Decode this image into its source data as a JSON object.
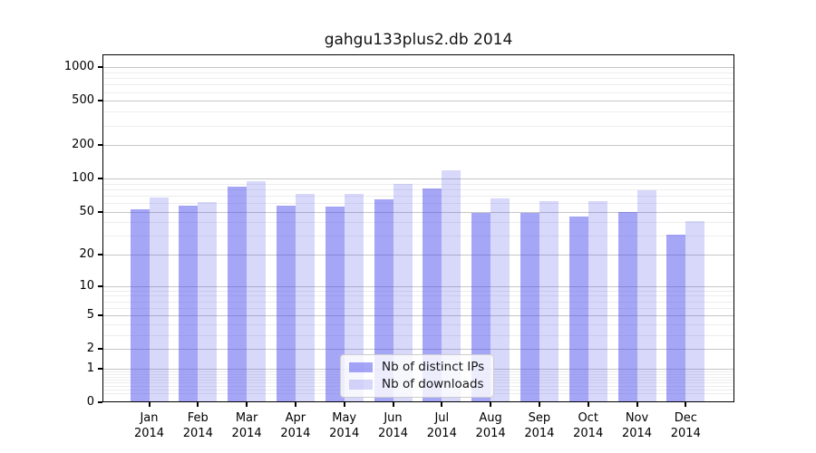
{
  "title": "gahgu133plus2.db 2014",
  "chart_data": {
    "type": "bar",
    "title": "gahgu133plus2.db 2014",
    "scale": "log10(1+x)",
    "categories": [
      "Jan",
      "Feb",
      "Mar",
      "Apr",
      "May",
      "Jun",
      "Jul",
      "Aug",
      "Sep",
      "Oct",
      "Nov",
      "Dec"
    ],
    "year": "2014",
    "series": [
      {
        "name": "Nb of distinct IPs",
        "color_hex": "#a6a6f5",
        "fill_rgba": "rgba(70,70,238,0.48)",
        "values": [
          53,
          57,
          85,
          57,
          56,
          65,
          82,
          49,
          49,
          45,
          50,
          31
        ]
      },
      {
        "name": "Nb of downloads",
        "color_hex": "#d9d9f8",
        "fill_rgba": "rgba(70,70,238,0.21)",
        "values": [
          68,
          61,
          95,
          73,
          72,
          89,
          118,
          66,
          63,
          62,
          79,
          41
        ]
      }
    ],
    "yticks": [
      0,
      1,
      2,
      5,
      10,
      20,
      50,
      100,
      200,
      500,
      1000
    ],
    "ylim": [
      0,
      1300
    ],
    "grid": true,
    "legend_position": "lower center",
    "grid_major_color": "#c6c6c6",
    "grid_minor_color": "#ededed",
    "axis_color": "#000000"
  }
}
